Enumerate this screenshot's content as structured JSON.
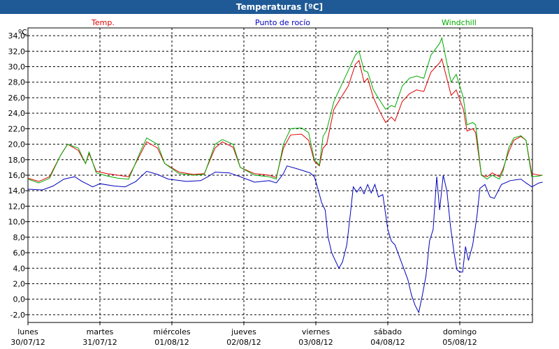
{
  "window": {
    "title": "Temperaturas [ºC]"
  },
  "legend": [
    {
      "label": "Temp.",
      "color": "#dd0000"
    },
    {
      "label": "Punto de rocío",
      "color": "#0000bb"
    },
    {
      "label": "Windchill",
      "color": "#00aa00"
    }
  ],
  "chart_data": {
    "type": "line",
    "title": "Temperaturas [ºC]",
    "ylabel": "ºC",
    "ylim": [
      -3,
      35
    ],
    "yticks": [
      "34,0",
      "32,0",
      "30,0",
      "28,0",
      "26,0",
      "24,0",
      "22,0",
      "20,0",
      "18,0",
      "16,0",
      "14,0",
      "12,0",
      "10,0",
      "8,0",
      "6,0",
      "4,0",
      "2,0",
      "0,0",
      "-2,0"
    ],
    "xlim": [
      0,
      7
    ],
    "xticks": [
      {
        "day": "lunes",
        "date": "30/07/12"
      },
      {
        "day": "martes",
        "date": "31/07/12"
      },
      {
        "day": "miércoles",
        "date": "01/08/12"
      },
      {
        "day": "jueves",
        "date": "02/08/12"
      },
      {
        "day": "viernes",
        "date": "03/08/12"
      },
      {
        "day": "sábado",
        "date": "04/08/12"
      },
      {
        "day": "domingo",
        "date": "05/08/12"
      }
    ],
    "grid": true,
    "series": [
      {
        "name": "Temp.",
        "color": "#dd0000",
        "points": [
          [
            0,
            15.6
          ],
          [
            0.15,
            15.2
          ],
          [
            0.3,
            15.8
          ],
          [
            0.45,
            18.5
          ],
          [
            0.55,
            20.0
          ],
          [
            0.7,
            19.2
          ],
          [
            0.8,
            17.5
          ],
          [
            0.85,
            18.8
          ],
          [
            0.95,
            16.5
          ],
          [
            1.1,
            16.2
          ],
          [
            1.25,
            16.0
          ],
          [
            1.4,
            15.8
          ],
          [
            1.55,
            18.5
          ],
          [
            1.65,
            20.3
          ],
          [
            1.8,
            19.5
          ],
          [
            1.9,
            17.5
          ],
          [
            2.1,
            16.4
          ],
          [
            2.3,
            16.1
          ],
          [
            2.45,
            16.2
          ],
          [
            2.6,
            19.5
          ],
          [
            2.7,
            20.3
          ],
          [
            2.85,
            19.6
          ],
          [
            2.95,
            17.0
          ],
          [
            3.15,
            16.2
          ],
          [
            3.35,
            16.0
          ],
          [
            3.45,
            15.7
          ],
          [
            3.55,
            19.5
          ],
          [
            3.65,
            21.2
          ],
          [
            3.8,
            21.3
          ],
          [
            3.9,
            20.5
          ],
          [
            3.98,
            17.8
          ],
          [
            4.05,
            17.2
          ],
          [
            4.1,
            19.5
          ],
          [
            4.15,
            20.0
          ],
          [
            4.25,
            24.5
          ],
          [
            4.35,
            26.0
          ],
          [
            4.45,
            27.5
          ],
          [
            4.55,
            30.3
          ],
          [
            4.6,
            30.8
          ],
          [
            4.67,
            28.0
          ],
          [
            4.72,
            28.5
          ],
          [
            4.8,
            26.0
          ],
          [
            4.9,
            24.0
          ],
          [
            4.97,
            22.8
          ],
          [
            5.05,
            23.5
          ],
          [
            5.1,
            23.0
          ],
          [
            5.2,
            25.5
          ],
          [
            5.3,
            26.5
          ],
          [
            5.4,
            27.0
          ],
          [
            5.5,
            26.8
          ],
          [
            5.6,
            29.3
          ],
          [
            5.72,
            30.5
          ],
          [
            5.75,
            31.0
          ],
          [
            5.82,
            28.5
          ],
          [
            5.88,
            26.3
          ],
          [
            5.95,
            27.0
          ],
          [
            6.05,
            24.5
          ],
          [
            6.1,
            21.7
          ],
          [
            6.18,
            22.0
          ],
          [
            6.22,
            21.5
          ],
          [
            6.3,
            16.0
          ],
          [
            6.38,
            15.8
          ],
          [
            6.45,
            16.3
          ],
          [
            6.55,
            15.8
          ],
          [
            6.6,
            16.8
          ],
          [
            6.68,
            19.0
          ],
          [
            6.75,
            20.5
          ],
          [
            6.85,
            21.0
          ],
          [
            6.92,
            20.5
          ],
          [
            7.0,
            16.2
          ],
          [
            7.1,
            16.0
          ],
          [
            7.15,
            16.0
          ]
        ]
      },
      {
        "name": "Windchill",
        "color": "#00aa00",
        "points": [
          [
            0,
            15.5
          ],
          [
            0.15,
            15.0
          ],
          [
            0.3,
            15.6
          ],
          [
            0.45,
            18.5
          ],
          [
            0.55,
            20.0
          ],
          [
            0.7,
            19.5
          ],
          [
            0.8,
            17.5
          ],
          [
            0.85,
            19.0
          ],
          [
            0.95,
            16.3
          ],
          [
            1.1,
            15.9
          ],
          [
            1.25,
            15.6
          ],
          [
            1.4,
            15.5
          ],
          [
            1.55,
            18.8
          ],
          [
            1.65,
            20.8
          ],
          [
            1.8,
            20.0
          ],
          [
            1.9,
            17.5
          ],
          [
            2.1,
            16.2
          ],
          [
            2.3,
            16.0
          ],
          [
            2.45,
            16.1
          ],
          [
            2.6,
            20.0
          ],
          [
            2.7,
            20.6
          ],
          [
            2.85,
            20.0
          ],
          [
            2.95,
            17.0
          ],
          [
            3.15,
            16.0
          ],
          [
            3.35,
            15.8
          ],
          [
            3.45,
            15.5
          ],
          [
            3.55,
            20.0
          ],
          [
            3.65,
            22.0
          ],
          [
            3.8,
            22.1
          ],
          [
            3.9,
            21.5
          ],
          [
            3.98,
            18.0
          ],
          [
            4.05,
            17.3
          ],
          [
            4.1,
            21.0
          ],
          [
            4.15,
            21.8
          ],
          [
            4.25,
            25.5
          ],
          [
            4.35,
            27.5
          ],
          [
            4.45,
            29.5
          ],
          [
            4.55,
            31.5
          ],
          [
            4.6,
            32.0
          ],
          [
            4.67,
            29.5
          ],
          [
            4.72,
            29.3
          ],
          [
            4.8,
            27.0
          ],
          [
            4.9,
            25.5
          ],
          [
            4.97,
            24.5
          ],
          [
            5.05,
            25.0
          ],
          [
            5.1,
            24.8
          ],
          [
            5.2,
            27.5
          ],
          [
            5.3,
            28.5
          ],
          [
            5.4,
            28.8
          ],
          [
            5.5,
            28.5
          ],
          [
            5.6,
            31.5
          ],
          [
            5.72,
            33.0
          ],
          [
            5.75,
            33.7
          ],
          [
            5.82,
            30.5
          ],
          [
            5.88,
            28.0
          ],
          [
            5.95,
            29.0
          ],
          [
            6.05,
            26.0
          ],
          [
            6.1,
            22.5
          ],
          [
            6.18,
            22.8
          ],
          [
            6.22,
            22.5
          ],
          [
            6.3,
            16.0
          ],
          [
            6.38,
            15.5
          ],
          [
            6.45,
            16.0
          ],
          [
            6.55,
            15.5
          ],
          [
            6.6,
            16.5
          ],
          [
            6.68,
            19.5
          ],
          [
            6.75,
            20.8
          ],
          [
            6.85,
            21.1
          ],
          [
            6.92,
            20.5
          ],
          [
            7.0,
            15.8
          ],
          [
            7.1,
            15.9
          ],
          [
            7.15,
            16.0
          ]
        ]
      },
      {
        "name": "Punto de rocío",
        "color": "#0000bb",
        "points": [
          [
            0,
            14.2
          ],
          [
            0.2,
            14.1
          ],
          [
            0.35,
            14.6
          ],
          [
            0.5,
            15.5
          ],
          [
            0.65,
            15.8
          ],
          [
            0.75,
            15.2
          ],
          [
            0.9,
            14.5
          ],
          [
            1.0,
            14.9
          ],
          [
            1.2,
            14.6
          ],
          [
            1.35,
            14.5
          ],
          [
            1.5,
            15.2
          ],
          [
            1.65,
            16.5
          ],
          [
            1.8,
            16.1
          ],
          [
            1.95,
            15.5
          ],
          [
            2.2,
            15.2
          ],
          [
            2.4,
            15.3
          ],
          [
            2.5,
            15.8
          ],
          [
            2.6,
            16.4
          ],
          [
            2.8,
            16.3
          ],
          [
            2.95,
            15.8
          ],
          [
            3.15,
            15.1
          ],
          [
            3.35,
            15.3
          ],
          [
            3.45,
            15.0
          ],
          [
            3.55,
            16.2
          ],
          [
            3.6,
            17.2
          ],
          [
            3.75,
            16.8
          ],
          [
            3.85,
            16.5
          ],
          [
            3.92,
            16.3
          ],
          [
            3.98,
            15.8
          ],
          [
            4.03,
            14.2
          ],
          [
            4.08,
            12.5
          ],
          [
            4.13,
            11.5
          ],
          [
            4.17,
            8.0
          ],
          [
            4.22,
            6.0
          ],
          [
            4.27,
            5.0
          ],
          [
            4.32,
            4.0
          ],
          [
            4.37,
            4.8
          ],
          [
            4.43,
            7.0
          ],
          [
            4.48,
            11.0
          ],
          [
            4.52,
            14.5
          ],
          [
            4.57,
            13.8
          ],
          [
            4.62,
            14.5
          ],
          [
            4.67,
            13.6
          ],
          [
            4.72,
            14.8
          ],
          [
            4.77,
            13.7
          ],
          [
            4.82,
            14.8
          ],
          [
            4.87,
            13.2
          ],
          [
            4.93,
            13.5
          ],
          [
            5.0,
            9.0
          ],
          [
            5.05,
            7.5
          ],
          [
            5.1,
            7.0
          ],
          [
            5.2,
            4.5
          ],
          [
            5.28,
            2.5
          ],
          [
            5.33,
            0.5
          ],
          [
            5.38,
            -0.8
          ],
          [
            5.43,
            -1.7
          ],
          [
            5.48,
            0.5
          ],
          [
            5.53,
            3.0
          ],
          [
            5.58,
            7.5
          ],
          [
            5.63,
            9.0
          ],
          [
            5.68,
            15.8
          ],
          [
            5.72,
            11.5
          ],
          [
            5.77,
            16.0
          ],
          [
            5.82,
            14.0
          ],
          [
            5.87,
            9.5
          ],
          [
            5.92,
            6.0
          ],
          [
            5.96,
            3.8
          ],
          [
            6.0,
            3.5
          ],
          [
            6.04,
            3.5
          ],
          [
            6.08,
            6.8
          ],
          [
            6.12,
            5.0
          ],
          [
            6.18,
            7.0
          ],
          [
            6.24,
            10.8
          ],
          [
            6.28,
            14.3
          ],
          [
            6.35,
            14.8
          ],
          [
            6.42,
            13.2
          ],
          [
            6.48,
            13.0
          ],
          [
            6.58,
            14.8
          ],
          [
            6.7,
            15.3
          ],
          [
            6.85,
            15.5
          ],
          [
            6.92,
            15.0
          ],
          [
            7.0,
            14.5
          ],
          [
            7.1,
            15.0
          ],
          [
            7.15,
            15.1
          ]
        ]
      }
    ]
  }
}
